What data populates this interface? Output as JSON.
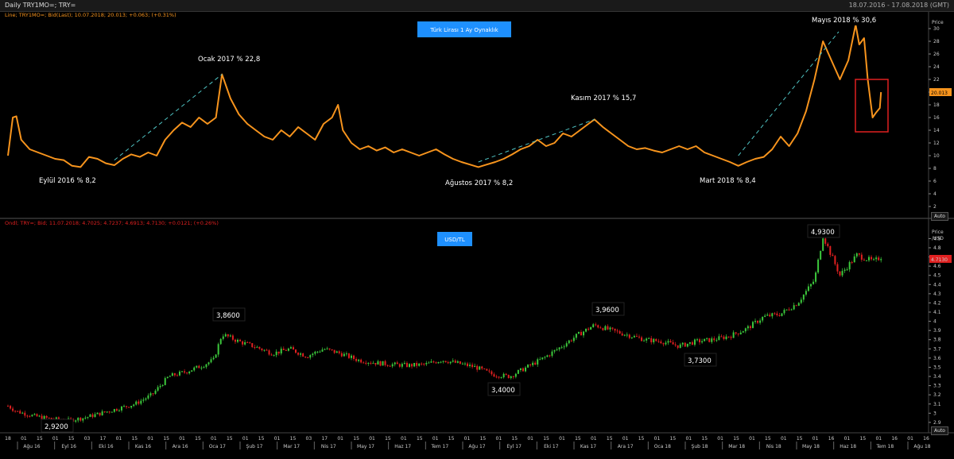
{
  "window": {
    "title": "Daily TRY1MO=; TRY=",
    "date_range": "18.07.2016 - 17.08.2018 (GMT)"
  },
  "colors": {
    "background": "#000000",
    "vol_line": "#f7941d",
    "trend": "#4fc3c3",
    "candle_up": "#3cc83c",
    "candle_down": "#e02020",
    "label_blue": "#1e90ff",
    "highlight_box": "#e02020"
  },
  "top_panel": {
    "info_line": "Line; TRY1MO=; Bid(Last); 10.07.2018; 20.013; +0.063; (+0.31%)",
    "title_label": "Türk Lirası 1 Ay Oynaklık",
    "price_axis_title": "Price",
    "current_value": "20.013",
    "auto_label": "Auto",
    "y_ticks": [
      "2",
      "4",
      "6",
      "8",
      "10",
      "12",
      "14",
      "16",
      "18",
      "20",
      "22",
      "24",
      "26",
      "28",
      "30"
    ],
    "annotations": [
      {
        "id": "sep16",
        "text": "Eylül 2016 % 8,2"
      },
      {
        "id": "jan17",
        "text": "Ocak 2017 % 22,8"
      },
      {
        "id": "aug17",
        "text": "Ağustos 2017 % 8,2"
      },
      {
        "id": "nov17",
        "text": "Kasım 2017 % 15,7"
      },
      {
        "id": "mar18",
        "text": "Mart 2018 % 8,4"
      },
      {
        "id": "may18",
        "text": "Mayıs 2018 % 30,6"
      }
    ]
  },
  "bottom_panel": {
    "info_line": "Ondl; TRY=; Bid; 11.07.2018; 4.7025; 4.7237; 4.6913; 4.7130; +0.0121; (+0.26%)",
    "title_label": "USD/TL",
    "price_axis_title": "Price",
    "price_axis_unit": "/USD",
    "current_value": "4.7130",
    "auto_label": "Auto",
    "y_ticks": [
      "2.9",
      "3",
      "3.1",
      "3.2",
      "3.3",
      "3.4",
      "3.5",
      "3.6",
      "3.7",
      "3.8",
      "3.9",
      "4",
      "4.1",
      "4.2",
      "4.3",
      "4.4",
      "4.5",
      "4.6",
      "4.7",
      "4.8",
      "4.9"
    ],
    "annotations": [
      {
        "id": "low16",
        "text": "2,9200"
      },
      {
        "id": "jan17",
        "text": "3,8600"
      },
      {
        "id": "aug17",
        "text": "3,4000"
      },
      {
        "id": "nov17",
        "text": "3,9600"
      },
      {
        "id": "jan18",
        "text": "3,7300"
      },
      {
        "id": "may18",
        "text": "4,9300"
      }
    ]
  },
  "x_axis": {
    "day_ticks": [
      "18",
      "01",
      "15",
      "01",
      "15",
      "03",
      "17",
      "01",
      "15",
      "01",
      "15",
      "01",
      "15",
      "01",
      "15",
      "01",
      "15",
      "01",
      "15",
      "03",
      "17",
      "01",
      "15",
      "01",
      "15",
      "01",
      "15",
      "01",
      "15",
      "01",
      "15",
      "01",
      "15",
      "01",
      "15",
      "01",
      "15",
      "01",
      "15",
      "01",
      "15",
      "01",
      "15",
      "01",
      "15",
      "01",
      "15",
      "01",
      "15",
      "01",
      "15",
      "01",
      "16",
      "01",
      "15",
      "01",
      "16",
      "01",
      "16"
    ],
    "month_ticks": [
      "Ağu 16",
      "Eyl 16",
      "Eki 16",
      "Kas 16",
      "Ara 16",
      "Oca 17",
      "Şub 17",
      "Mar 17",
      "Nis 17",
      "May 17",
      "Haz 17",
      "Tem 17",
      "Ağu 17",
      "Eyl 17",
      "Eki 17",
      "Kas 17",
      "Ara 17",
      "Oca 18",
      "Şub 18",
      "Mar 18",
      "Nis 18",
      "May 18",
      "Haz 18",
      "Tem 18",
      "Ağu 18"
    ]
  },
  "chart_data": [
    {
      "type": "line",
      "title": "Türk Lirası 1 Ay Oynaklık",
      "ylabel": "Price",
      "ylim": [
        1,
        32
      ],
      "x_start": "2016-07-18",
      "x_end": "2018-08-17",
      "series": [
        {
          "name": "TRY1MO=",
          "points": [
            [
              "2016-07-18",
              10.0
            ],
            [
              "2016-07-22",
              16.0
            ],
            [
              "2016-07-25",
              16.2
            ],
            [
              "2016-07-29",
              12.5
            ],
            [
              "2016-08-05",
              11.0
            ],
            [
              "2016-08-12",
              10.5
            ],
            [
              "2016-08-19",
              10.0
            ],
            [
              "2016-08-26",
              9.5
            ],
            [
              "2016-09-02",
              9.3
            ],
            [
              "2016-09-09",
              8.4
            ],
            [
              "2016-09-16",
              8.2
            ],
            [
              "2016-09-23",
              9.8
            ],
            [
              "2016-09-30",
              9.5
            ],
            [
              "2016-10-07",
              8.8
            ],
            [
              "2016-10-14",
              8.5
            ],
            [
              "2016-10-21",
              9.5
            ],
            [
              "2016-10-28",
              10.2
            ],
            [
              "2016-11-04",
              9.8
            ],
            [
              "2016-11-11",
              10.5
            ],
            [
              "2016-11-18",
              10.0
            ],
            [
              "2016-11-25",
              12.5
            ],
            [
              "2016-12-02",
              14.0
            ],
            [
              "2016-12-09",
              15.2
            ],
            [
              "2016-12-16",
              14.5
            ],
            [
              "2016-12-23",
              16.0
            ],
            [
              "2016-12-30",
              15.0
            ],
            [
              "2017-01-06",
              16.0
            ],
            [
              "2017-01-11",
              22.8
            ],
            [
              "2017-01-18",
              19.0
            ],
            [
              "2017-01-25",
              16.5
            ],
            [
              "2017-02-01",
              15.0
            ],
            [
              "2017-02-08",
              14.0
            ],
            [
              "2017-02-15",
              13.0
            ],
            [
              "2017-02-22",
              12.5
            ],
            [
              "2017-03-01",
              14.0
            ],
            [
              "2017-03-08",
              13.0
            ],
            [
              "2017-03-15",
              14.5
            ],
            [
              "2017-03-22",
              13.5
            ],
            [
              "2017-03-29",
              12.5
            ],
            [
              "2017-04-05",
              15.0
            ],
            [
              "2017-04-12",
              16.0
            ],
            [
              "2017-04-17",
              18.0
            ],
            [
              "2017-04-21",
              14.0
            ],
            [
              "2017-04-28",
              12.0
            ],
            [
              "2017-05-05",
              11.0
            ],
            [
              "2017-05-12",
              11.5
            ],
            [
              "2017-05-19",
              10.8
            ],
            [
              "2017-05-26",
              11.3
            ],
            [
              "2017-06-02",
              10.5
            ],
            [
              "2017-06-09",
              11.0
            ],
            [
              "2017-06-16",
              10.5
            ],
            [
              "2017-06-23",
              10.0
            ],
            [
              "2017-06-30",
              10.5
            ],
            [
              "2017-07-07",
              11.0
            ],
            [
              "2017-07-14",
              10.2
            ],
            [
              "2017-07-21",
              9.5
            ],
            [
              "2017-07-28",
              9.0
            ],
            [
              "2017-08-04",
              8.6
            ],
            [
              "2017-08-11",
              8.2
            ],
            [
              "2017-08-18",
              8.6
            ],
            [
              "2017-08-25",
              9.0
            ],
            [
              "2017-09-01",
              9.5
            ],
            [
              "2017-09-08",
              10.2
            ],
            [
              "2017-09-15",
              11.0
            ],
            [
              "2017-09-22",
              11.5
            ],
            [
              "2017-09-29",
              12.5
            ],
            [
              "2017-10-06",
              11.5
            ],
            [
              "2017-10-13",
              12.0
            ],
            [
              "2017-10-20",
              13.5
            ],
            [
              "2017-10-27",
              13.0
            ],
            [
              "2017-11-03",
              14.0
            ],
            [
              "2017-11-10",
              15.0
            ],
            [
              "2017-11-15",
              15.7
            ],
            [
              "2017-11-22",
              14.5
            ],
            [
              "2017-11-29",
              13.5
            ],
            [
              "2017-12-06",
              12.5
            ],
            [
              "2017-12-13",
              11.5
            ],
            [
              "2017-12-20",
              11.0
            ],
            [
              "2017-12-27",
              11.2
            ],
            [
              "2018-01-03",
              10.8
            ],
            [
              "2018-01-10",
              10.5
            ],
            [
              "2018-01-17",
              11.0
            ],
            [
              "2018-01-24",
              11.5
            ],
            [
              "2018-01-31",
              11.0
            ],
            [
              "2018-02-07",
              11.5
            ],
            [
              "2018-02-14",
              10.5
            ],
            [
              "2018-02-21",
              10.0
            ],
            [
              "2018-02-28",
              9.5
            ],
            [
              "2018-03-07",
              9.0
            ],
            [
              "2018-03-14",
              8.4
            ],
            [
              "2018-03-21",
              9.0
            ],
            [
              "2018-03-28",
              9.5
            ],
            [
              "2018-04-04",
              9.8
            ],
            [
              "2018-04-11",
              11.0
            ],
            [
              "2018-04-18",
              13.0
            ],
            [
              "2018-04-25",
              11.5
            ],
            [
              "2018-05-02",
              13.5
            ],
            [
              "2018-05-09",
              17.0
            ],
            [
              "2018-05-16",
              22.0
            ],
            [
              "2018-05-23",
              28.0
            ],
            [
              "2018-05-30",
              25.0
            ],
            [
              "2018-06-06",
              22.0
            ],
            [
              "2018-06-13",
              25.0
            ],
            [
              "2018-06-19",
              30.6
            ],
            [
              "2018-06-22",
              27.5
            ],
            [
              "2018-06-26",
              28.5
            ],
            [
              "2018-06-29",
              22.0
            ],
            [
              "2018-07-03",
              16.0
            ],
            [
              "2018-07-06",
              16.8
            ],
            [
              "2018-07-09",
              17.5
            ],
            [
              "2018-07-10",
              20.0
            ]
          ]
        }
      ]
    },
    {
      "type": "candlestick",
      "title": "USD/TL",
      "ylabel": "Price /USD",
      "ylim": [
        2.83,
        4.99
      ],
      "x_start": "2016-07-18",
      "x_end": "2018-08-17",
      "series": [
        {
          "name": "TRY=",
          "points": [
            [
              "2016-07-18",
              3.08
            ],
            [
              "2016-07-25",
              3.02
            ],
            [
              "2016-08-08",
              2.97
            ],
            [
              "2016-08-22",
              2.94
            ],
            [
              "2016-09-05",
              2.92
            ],
            [
              "2016-09-19",
              2.95
            ],
            [
              "2016-10-03",
              3.0
            ],
            [
              "2016-10-17",
              3.05
            ],
            [
              "2016-10-31",
              3.1
            ],
            [
              "2016-11-14",
              3.2
            ],
            [
              "2016-11-28",
              3.4
            ],
            [
              "2016-12-12",
              3.45
            ],
            [
              "2016-12-26",
              3.52
            ],
            [
              "2017-01-04",
              3.58
            ],
            [
              "2017-01-11",
              3.86
            ],
            [
              "2017-01-25",
              3.78
            ],
            [
              "2017-02-08",
              3.72
            ],
            [
              "2017-02-22",
              3.65
            ],
            [
              "2017-03-08",
              3.7
            ],
            [
              "2017-03-22",
              3.62
            ],
            [
              "2017-04-05",
              3.7
            ],
            [
              "2017-04-19",
              3.65
            ],
            [
              "2017-05-03",
              3.58
            ],
            [
              "2017-05-17",
              3.55
            ],
            [
              "2017-05-31",
              3.53
            ],
            [
              "2017-06-14",
              3.52
            ],
            [
              "2017-06-28",
              3.53
            ],
            [
              "2017-07-12",
              3.58
            ],
            [
              "2017-07-26",
              3.54
            ],
            [
              "2017-08-09",
              3.5
            ],
            [
              "2017-08-23",
              3.42
            ],
            [
              "2017-09-06",
              3.4
            ],
            [
              "2017-09-20",
              3.5
            ],
            [
              "2017-10-04",
              3.6
            ],
            [
              "2017-10-18",
              3.72
            ],
            [
              "2017-11-01",
              3.85
            ],
            [
              "2017-11-15",
              3.96
            ],
            [
              "2017-11-29",
              3.9
            ],
            [
              "2017-12-13",
              3.85
            ],
            [
              "2017-12-27",
              3.8
            ],
            [
              "2018-01-10",
              3.78
            ],
            [
              "2018-01-24",
              3.73
            ],
            [
              "2018-02-07",
              3.78
            ],
            [
              "2018-02-21",
              3.8
            ],
            [
              "2018-03-07",
              3.84
            ],
            [
              "2018-03-21",
              3.92
            ],
            [
              "2018-04-04",
              4.05
            ],
            [
              "2018-04-18",
              4.08
            ],
            [
              "2018-05-02",
              4.2
            ],
            [
              "2018-05-16",
              4.45
            ],
            [
              "2018-05-23",
              4.93
            ],
            [
              "2018-06-06",
              4.5
            ],
            [
              "2018-06-20",
              4.72
            ],
            [
              "2018-07-04",
              4.65
            ],
            [
              "2018-07-11",
              4.71
            ]
          ]
        }
      ]
    }
  ]
}
